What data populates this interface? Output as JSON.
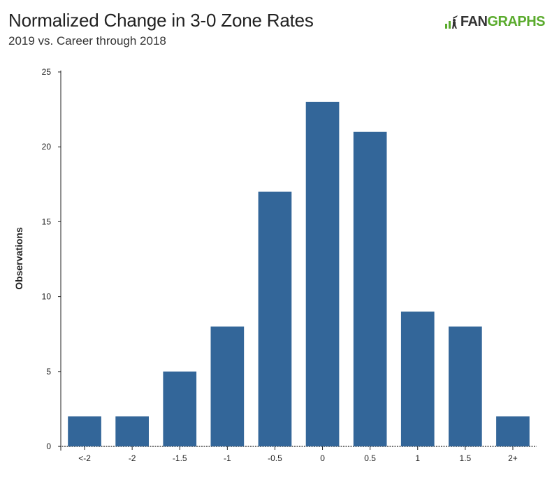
{
  "header": {
    "title": "Normalized Change in 3-0 Zone Rates",
    "subtitle": "2019 vs. Career through 2018",
    "logo_fan": "FAN",
    "logo_graphs": "GRAPHS"
  },
  "colors": {
    "bar": "#336699",
    "axis": "#222222",
    "logo_green": "#5aab2d"
  },
  "chart_data": {
    "type": "bar",
    "title": "Normalized Change in 3-0 Zone Rates",
    "subtitle": "2019 vs. Career through 2018",
    "xlabel": "",
    "ylabel": "Observations",
    "categories": [
      "<-2",
      "-2",
      "-1.5",
      "-1",
      "-0.5",
      "0",
      "0.5",
      "1",
      "1.5",
      "2+"
    ],
    "values": [
      2,
      2,
      5,
      8,
      17,
      23,
      21,
      9,
      8,
      2
    ],
    "ylim": [
      0,
      25
    ],
    "yticks": [
      0,
      5,
      10,
      15,
      20,
      25
    ],
    "grid": false,
    "legend": "none"
  }
}
